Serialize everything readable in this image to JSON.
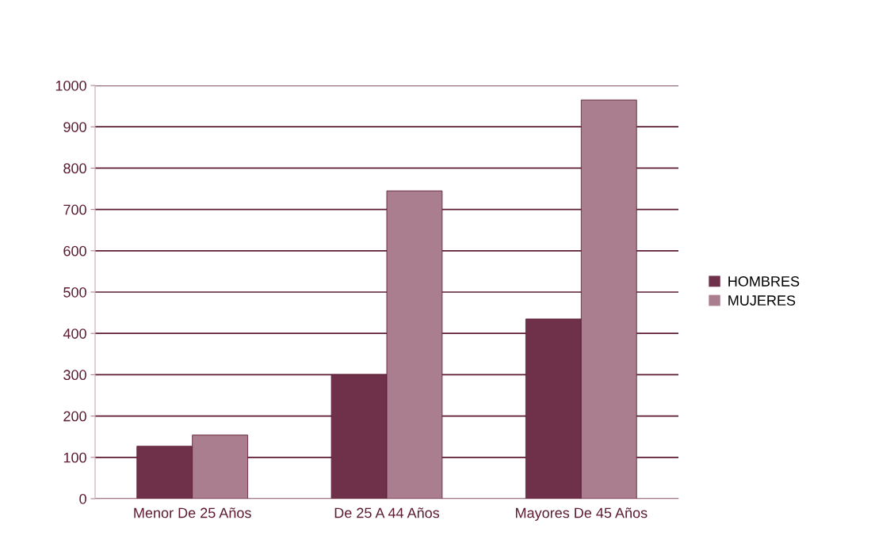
{
  "chart_data": {
    "type": "bar",
    "categories": [
      "Menor De 25 Años",
      "De 25 A 44 Años",
      "Mayores De 45 Años"
    ],
    "series": [
      {
        "name": "HOMBRES",
        "color": "#6e3149",
        "values": [
          127,
          300,
          435
        ]
      },
      {
        "name": "MUJERES",
        "color": "#ab7e8f",
        "values": [
          154,
          745,
          965
        ]
      }
    ],
    "ylim": [
      0,
      1000
    ],
    "yticks": [
      0,
      100,
      200,
      300,
      400,
      500,
      600,
      700,
      800,
      900,
      1000
    ],
    "grid": "y",
    "legend": "right"
  }
}
